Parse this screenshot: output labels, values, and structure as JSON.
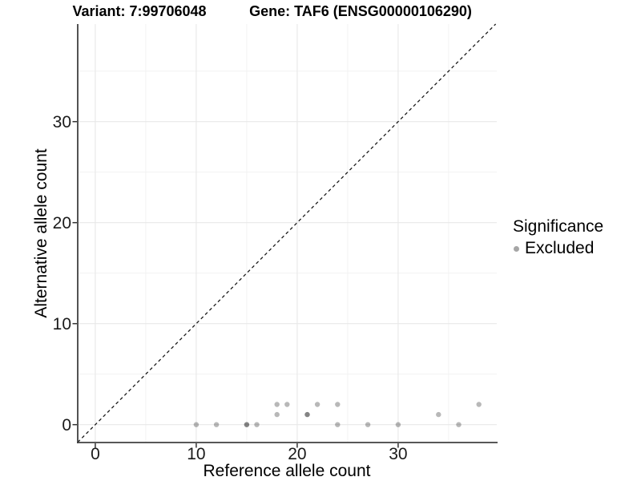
{
  "header": {
    "title_left": "Variant: 7:99706048",
    "title_right": "Gene: TAF6 (ENSG00000106290)"
  },
  "legend": {
    "title": "Significance",
    "items": [
      {
        "label": "Excluded",
        "color": "#a6a6a6"
      }
    ]
  },
  "chart_data": {
    "type": "scatter",
    "title_left": "Variant: 7:99706048",
    "title_right": "Gene: TAF6 (ENSG00000106290)",
    "xlabel": "Reference allele count",
    "ylabel": "Alternative allele count",
    "xlim": [
      -1.74,
      39.77
    ],
    "ylim": [
      -1.77,
      39.66
    ],
    "x_ticks": [
      0,
      10,
      20,
      30
    ],
    "y_ticks": [
      0,
      10,
      20,
      30
    ],
    "x_minor_ticks": [
      5,
      15,
      25,
      35
    ],
    "y_minor_ticks": [
      5,
      15,
      25,
      35
    ],
    "grid": true,
    "legend_position": "right",
    "series": [
      {
        "name": "Excluded",
        "color": "#000000",
        "opacity": 0.28,
        "point_radius": 3.2,
        "points": [
          [
            10,
            0
          ],
          [
            12,
            0
          ],
          [
            15,
            0
          ],
          [
            15,
            0
          ],
          [
            16,
            0
          ],
          [
            24,
            0
          ],
          [
            27,
            0
          ],
          [
            30,
            0
          ],
          [
            36,
            0
          ],
          [
            18,
            1
          ],
          [
            21,
            1
          ],
          [
            21,
            1
          ],
          [
            34,
            1
          ],
          [
            18,
            2
          ],
          [
            19,
            2
          ],
          [
            22,
            2
          ],
          [
            24,
            2
          ],
          [
            38,
            2
          ]
        ]
      }
    ],
    "reference_line": {
      "type": "identity",
      "slope": 1,
      "intercept": 0,
      "style": "dashed",
      "color": "#1c1c1c"
    }
  }
}
